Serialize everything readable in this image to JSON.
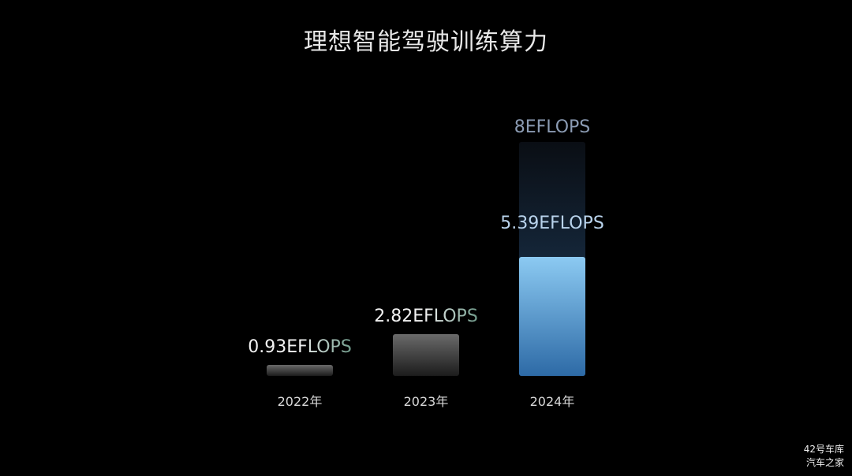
{
  "chart_data": {
    "type": "bar",
    "title": "理想智能驾驶训练算力",
    "categories": [
      "2022年",
      "2023年",
      "2024年"
    ],
    "values": [
      0.93,
      2.82,
      5.39
    ],
    "data_labels": [
      "0.93EFLOPS",
      "2.82EFLOPS",
      "5.39EFLOPS"
    ],
    "target": {
      "category": "2024年",
      "value": 8,
      "label": "8EFLOPS"
    },
    "unit": "EFLOPS",
    "xlabel": "",
    "ylabel": "",
    "grid": false,
    "colors": {
      "past_bars": "#5a5a5a",
      "current_bar_top": "#8ccaf2",
      "current_bar_bottom": "#2d6aa6",
      "target_label": "#8b9bb3"
    }
  },
  "watermark": [
    "42号车库",
    "汽车之家"
  ]
}
